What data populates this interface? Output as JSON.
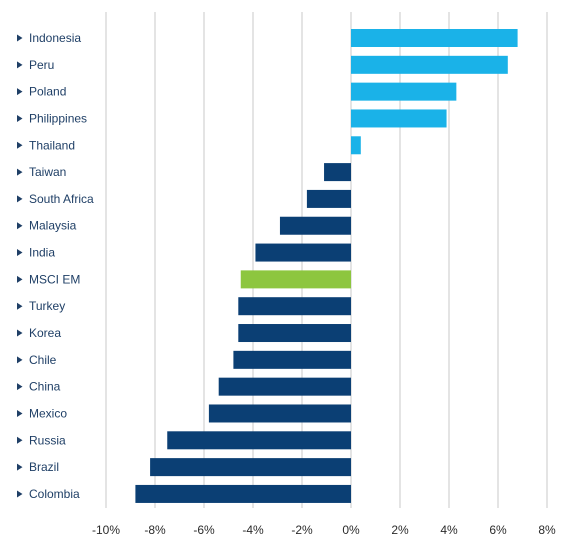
{
  "chart_data": {
    "type": "bar",
    "orientation": "horizontal",
    "title": "",
    "xlabel": "",
    "ylabel": "",
    "xlim": [
      -10,
      8
    ],
    "x_ticks": [
      -10,
      -8,
      -6,
      -4,
      -2,
      0,
      2,
      4,
      6,
      8
    ],
    "x_tick_labels": [
      "-10%",
      "-8%",
      "-6%",
      "-4%",
      "-2%",
      "0%",
      "2%",
      "4%",
      "6%",
      "8%"
    ],
    "grid": "vertical",
    "legend": "none",
    "categories": [
      "Indonesia",
      "Peru",
      "Poland",
      "Philippines",
      "Thailand",
      "Taiwan",
      "South Africa",
      "Malaysia",
      "India",
      "MSCI EM",
      "Turkey",
      "Korea",
      "Chile",
      "China",
      "Mexico",
      "Russia",
      "Brazil",
      "Colombia"
    ],
    "values": [
      6.8,
      6.4,
      4.3,
      3.9,
      0.4,
      -1.1,
      -1.8,
      -2.9,
      -3.9,
      -4.5,
      -4.6,
      -4.6,
      -4.8,
      -5.4,
      -5.8,
      -7.5,
      -8.2,
      -8.8
    ],
    "colors": {
      "positive": "#1ab2e8",
      "negative": "#0b3f74",
      "highlight": "#8dc63f"
    },
    "highlight_category": "MSCI EM"
  }
}
